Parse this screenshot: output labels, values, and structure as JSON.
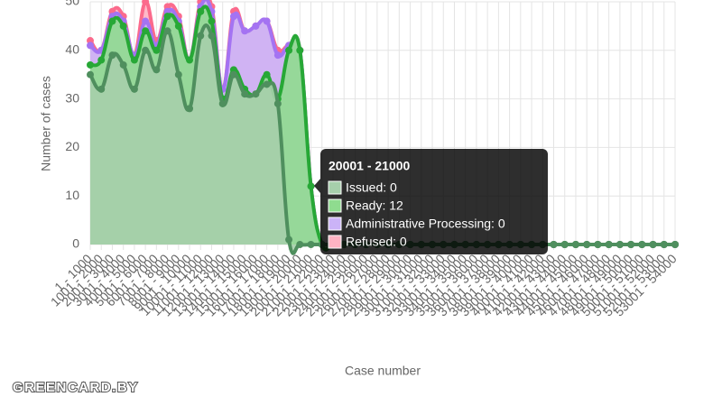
{
  "chart_data": {
    "type": "stacked-area",
    "x_label": "Case number",
    "y_label": "Number of cases",
    "categories": [
      "1 - 1000",
      "1001 - 2000",
      "2001 - 3000",
      "3001 - 4000",
      "4001 - 5000",
      "5001 - 6000",
      "6001 - 7000",
      "7001 - 8000",
      "8001 - 9000",
      "9001 - 10000",
      "10001 - 11000",
      "11001 - 12000",
      "12001 - 13000",
      "13001 - 14000",
      "14001 - 15000",
      "15001 - 16000",
      "16001 - 17000",
      "17001 - 18000",
      "18001 - 19000",
      "19001 - 20000",
      "20001 - 21000",
      "21001 - 22000",
      "22001 - 23000",
      "23001 - 24000",
      "24001 - 25000",
      "25001 - 26000",
      "26001 - 27000",
      "27001 - 28000",
      "28001 - 29000",
      "29001 - 30000",
      "30001 - 31000",
      "31001 - 32000",
      "32001 - 33000",
      "33001 - 34000",
      "34001 - 35000",
      "35001 - 36000",
      "36001 - 37000",
      "37001 - 38000",
      "38001 - 39000",
      "39001 - 40000",
      "40001 - 41000",
      "41001 - 42000",
      "42001 - 43000",
      "43001 - 44000",
      "44001 - 45000",
      "45001 - 46000",
      "46001 - 47000",
      "47001 - 48000",
      "48001 - 49000",
      "49001 - 50000",
      "50001 - 51000",
      "51001 - 52000",
      "52001 - 53000",
      "53001 - 54000"
    ],
    "series": [
      {
        "name": "Issued",
        "color": "#4f8f5e",
        "fill": "#a6cfab",
        "values": [
          35,
          32,
          39,
          37,
          32,
          40,
          36,
          44,
          35,
          28,
          43,
          43,
          29,
          35,
          31,
          31,
          33,
          29,
          1,
          0,
          0,
          0,
          0,
          0,
          0,
          0,
          0,
          0,
          0,
          0,
          0,
          0,
          0,
          0,
          0,
          0,
          0,
          0,
          0,
          0,
          0,
          0,
          0,
          0,
          0,
          0,
          0,
          0,
          0,
          0,
          0,
          0,
          0,
          0
        ]
      },
      {
        "name": "Ready",
        "color": "#27a836",
        "fill": "#8fdc8f",
        "values": [
          2,
          6,
          7,
          8,
          6,
          4,
          4,
          3,
          10,
          10,
          5,
          3,
          1,
          1,
          1,
          0,
          2,
          1,
          39,
          40,
          12,
          0,
          0,
          0,
          0,
          0,
          0,
          0,
          0,
          0,
          0,
          0,
          0,
          0,
          0,
          0,
          0,
          0,
          0,
          0,
          0,
          0,
          0,
          0,
          0,
          0,
          0,
          0,
          0,
          0,
          0,
          0,
          0,
          0
        ]
      },
      {
        "name": "Administrative Processing",
        "color": "#a473f2",
        "fill": "#cbb3f7",
        "values": [
          4,
          2,
          1,
          1,
          1,
          2,
          1,
          1,
          1,
          0,
          1,
          2,
          2,
          11,
          12,
          14,
          11,
          9,
          1,
          0,
          0,
          0,
          0,
          0,
          0,
          0,
          0,
          0,
          0,
          0,
          0,
          0,
          0,
          0,
          0,
          0,
          0,
          0,
          0,
          0,
          0,
          0,
          0,
          0,
          0,
          0,
          0,
          0,
          0,
          0,
          0,
          0,
          0,
          0
        ]
      },
      {
        "name": "Refused",
        "color": "#fb6a8c",
        "fill": "#ffb3c3",
        "values": [
          1,
          0,
          1,
          1,
          0,
          4,
          1,
          1,
          1,
          0,
          1,
          1,
          0,
          1,
          0,
          0,
          0,
          1,
          0,
          0,
          0,
          0,
          0,
          0,
          0,
          0,
          0,
          0,
          0,
          0,
          0,
          0,
          0,
          0,
          0,
          0,
          0,
          0,
          0,
          0,
          0,
          0,
          0,
          0,
          0,
          0,
          0,
          0,
          0,
          0,
          0,
          0,
          0,
          0
        ]
      }
    ],
    "ylim": [
      0,
      50
    ],
    "yticks": [
      0,
      10,
      20,
      30,
      40,
      50
    ],
    "grid": true,
    "tooltip": {
      "title": "20001 - 21000",
      "items": [
        "Issued: 0",
        "Ready: 12",
        "Administrative Processing: 0",
        "Refused: 0"
      ]
    }
  },
  "watermark": "GREENCARD.BY"
}
